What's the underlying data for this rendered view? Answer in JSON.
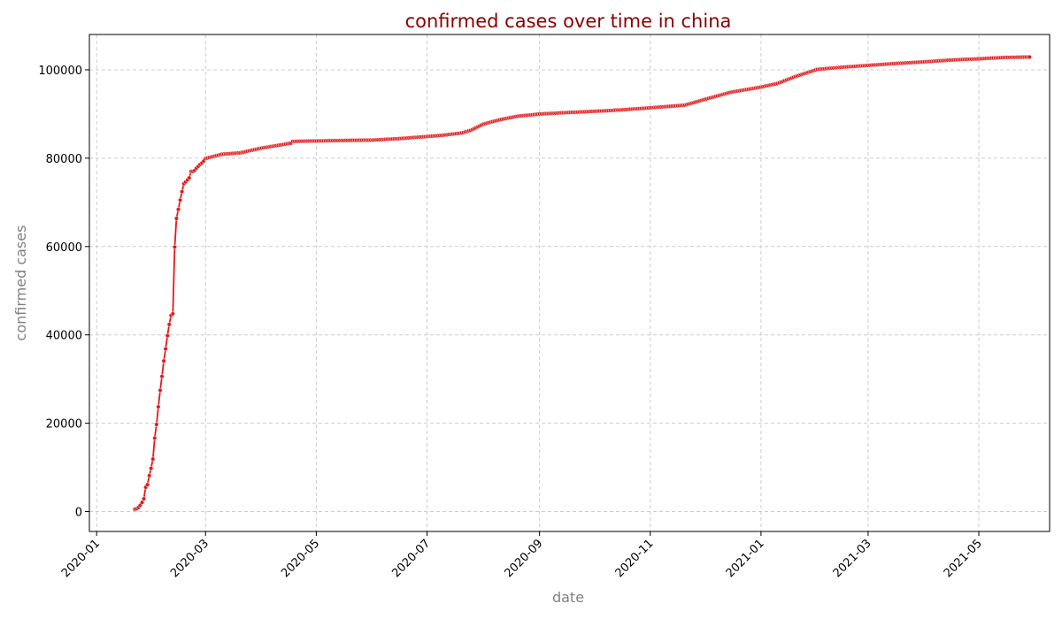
{
  "chart_data": {
    "type": "line",
    "title": "confirmed cases over time in china",
    "xlabel": "date",
    "ylabel": "confirmed cases",
    "x_axis": "date",
    "xlim": [
      "2019-12-28",
      "2021-06-09"
    ],
    "ylim": [
      -4500,
      108000
    ],
    "x_ticks": [
      "2020-01",
      "2020-03",
      "2020-05",
      "2020-07",
      "2020-09",
      "2020-11",
      "2021-01",
      "2021-03",
      "2021-05"
    ],
    "x_tick_dates": [
      "2020-01-01",
      "2020-03-01",
      "2020-05-01",
      "2020-07-01",
      "2020-09-01",
      "2020-11-01",
      "2021-01-01",
      "2021-03-01",
      "2021-05-01"
    ],
    "y_ticks": [
      0,
      20000,
      40000,
      60000,
      80000,
      100000
    ],
    "grid": true,
    "legend": "none",
    "colors": {
      "line": "#e31a1c",
      "marker": "#e31a1c",
      "marker_edge": "#ffffff",
      "grid": "#cccccc",
      "title": "#8b0000",
      "axis_title": "#808080"
    },
    "series": [
      {
        "points": [
          [
            "2020-01-22",
            548
          ],
          [
            "2020-01-23",
            643
          ],
          [
            "2020-01-24",
            920
          ],
          [
            "2020-01-25",
            1406
          ],
          [
            "2020-01-26",
            2075
          ],
          [
            "2020-01-27",
            2877
          ],
          [
            "2020-01-28",
            5509
          ],
          [
            "2020-01-29",
            6087
          ],
          [
            "2020-01-30",
            8141
          ],
          [
            "2020-01-31",
            9802
          ],
          [
            "2020-02-01",
            11891
          ],
          [
            "2020-02-02",
            16630
          ],
          [
            "2020-02-03",
            19716
          ],
          [
            "2020-02-04",
            23707
          ],
          [
            "2020-02-05",
            27440
          ],
          [
            "2020-02-06",
            30587
          ],
          [
            "2020-02-07",
            34110
          ],
          [
            "2020-02-08",
            36814
          ],
          [
            "2020-02-09",
            39829
          ],
          [
            "2020-02-10",
            42354
          ],
          [
            "2020-02-11",
            44386
          ],
          [
            "2020-02-12",
            44759
          ],
          [
            "2020-02-13",
            59895
          ],
          [
            "2020-02-14",
            66358
          ],
          [
            "2020-02-15",
            68413
          ],
          [
            "2020-02-16",
            70513
          ],
          [
            "2020-02-17",
            72434
          ],
          [
            "2020-02-18",
            74211
          ],
          [
            "2020-02-19",
            74619
          ],
          [
            "2020-02-20",
            75077
          ],
          [
            "2020-02-21",
            75550
          ],
          [
            "2020-02-22",
            77001
          ],
          [
            "2020-02-23",
            77022
          ],
          [
            "2020-02-24",
            77241
          ],
          [
            "2020-02-25",
            77754
          ],
          [
            "2020-02-26",
            78166
          ],
          [
            "2020-02-27",
            78600
          ],
          [
            "2020-02-28",
            78928
          ],
          [
            "2020-02-29",
            79356
          ],
          [
            "2020-03-01",
            79932
          ],
          [
            "2020-03-10",
            80900
          ],
          [
            "2020-03-20",
            81200
          ],
          [
            "2020-04-01",
            82300
          ],
          [
            "2020-04-10",
            82900
          ],
          [
            "2020-04-17",
            83400
          ],
          [
            "2020-04-18",
            83800
          ],
          [
            "2020-05-01",
            83900
          ],
          [
            "2020-05-15",
            84000
          ],
          [
            "2020-06-01",
            84100
          ],
          [
            "2020-06-15",
            84400
          ],
          [
            "2020-07-01",
            84900
          ],
          [
            "2020-07-10",
            85200
          ],
          [
            "2020-07-20",
            85700
          ],
          [
            "2020-07-25",
            86300
          ],
          [
            "2020-08-01",
            87700
          ],
          [
            "2020-08-10",
            88700
          ],
          [
            "2020-08-20",
            89500
          ],
          [
            "2020-09-01",
            90000
          ],
          [
            "2020-09-15",
            90300
          ],
          [
            "2020-10-01",
            90600
          ],
          [
            "2020-10-15",
            90900
          ],
          [
            "2020-11-01",
            91400
          ],
          [
            "2020-11-20",
            92000
          ],
          [
            "2020-12-01",
            93300
          ],
          [
            "2020-12-15",
            94900
          ],
          [
            "2021-01-01",
            96100
          ],
          [
            "2021-01-10",
            96900
          ],
          [
            "2021-01-20",
            98500
          ],
          [
            "2021-02-01",
            100100
          ],
          [
            "2021-02-15",
            100600
          ],
          [
            "2021-03-01",
            101000
          ],
          [
            "2021-03-15",
            101400
          ],
          [
            "2021-04-01",
            101800
          ],
          [
            "2021-04-15",
            102200
          ],
          [
            "2021-05-01",
            102500
          ],
          [
            "2021-05-15",
            102800
          ],
          [
            "2021-05-29",
            102900
          ]
        ]
      }
    ]
  }
}
